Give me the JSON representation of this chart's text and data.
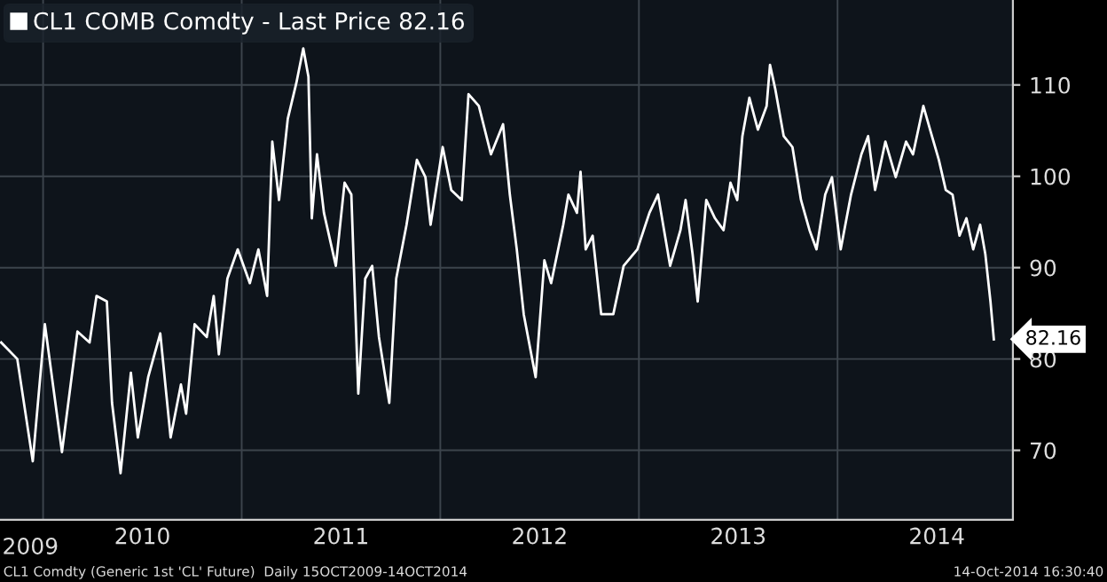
{
  "chart_data": {
    "type": "line",
    "legend": "top left",
    "grid": true,
    "annotations": [
      "CL1 Comdty (Generic 1st 'CL' Future)  Daily 15OCT2009-14OCT2014",
      "14-Oct-2014 16:30:40",
      "2009"
    ],
    "xlim": [
      2009.783,
      2014.883
    ],
    "ylim": [
      62.4,
      119.3
    ],
    "xticks": [
      {
        "value": 2010,
        "label": null
      },
      {
        "value": 2010.5,
        "label": "2010"
      },
      {
        "value": 2011,
        "label": null
      },
      {
        "value": 2011.5,
        "label": "2011"
      },
      {
        "value": 2012,
        "label": null
      },
      {
        "value": 2012.5,
        "label": "2012"
      },
      {
        "value": 2013,
        "label": null
      },
      {
        "value": 2013.5,
        "label": "2013"
      },
      {
        "value": 2014,
        "label": null
      },
      {
        "value": 2014.5,
        "label": "2014"
      }
    ],
    "yticks": [
      70,
      80,
      90,
      100,
      110
    ],
    "series": [
      {
        "name": "CL1 COMB Comdty - Last Price 82.16",
        "color": "#ffffff",
        "x": [
          2009.789,
          2009.87,
          2009.948,
          2010.009,
          2010.095,
          2010.173,
          2010.234,
          2010.269,
          2010.321,
          2010.347,
          2010.39,
          2010.442,
          2010.477,
          2010.529,
          2010.59,
          2010.642,
          2010.694,
          2010.72,
          2010.763,
          2010.824,
          2010.859,
          2010.885,
          2010.928,
          2010.98,
          2011.041,
          2011.084,
          2011.128,
          2011.154,
          2011.188,
          2011.232,
          2011.275,
          2011.31,
          2011.336,
          2011.353,
          2011.379,
          2011.414,
          2011.474,
          2011.518,
          2011.552,
          2011.587,
          2011.622,
          2011.657,
          2011.691,
          2011.743,
          2011.778,
          2011.83,
          2011.882,
          2011.925,
          2011.951,
          2012.012,
          2012.055,
          2012.108,
          2012.142,
          2012.194,
          2012.255,
          2012.316,
          2012.35,
          2012.385,
          2012.42,
          2012.48,
          2012.524,
          2012.558,
          2012.619,
          2012.645,
          2012.688,
          2012.706,
          2012.732,
          2012.767,
          2012.81,
          2012.871,
          2012.923,
          2012.992,
          2013.053,
          2013.096,
          2013.157,
          2013.209,
          2013.235,
          2013.27,
          2013.296,
          2013.339,
          2013.383,
          2013.426,
          2013.461,
          2013.495,
          2013.521,
          2013.556,
          2013.599,
          2013.643,
          2013.66,
          2013.686,
          2013.729,
          2013.773,
          2013.816,
          2013.859,
          2013.894,
          2013.938,
          2013.972,
          2014.016,
          2014.068,
          2014.12,
          2014.154,
          2014.189,
          2014.241,
          2014.293,
          2014.345,
          2014.38,
          2014.432,
          2014.466,
          2014.51,
          2014.545,
          2014.579,
          2014.614,
          2014.649,
          2014.683,
          2014.718,
          2014.744,
          2014.77,
          2014.787
        ],
        "values": [
          81.8,
          80,
          68.8,
          83.8,
          69.8,
          83,
          81.8,
          86.9,
          86.3,
          75.2,
          67.5,
          78.5,
          71.4,
          78,
          82.8,
          71.4,
          77.2,
          74,
          83.8,
          82.4,
          86.9,
          80.5,
          88.8,
          92,
          88.3,
          92,
          86.9,
          103.8,
          97.4,
          106.3,
          110.2,
          114,
          110.9,
          95.4,
          102.4,
          96,
          90.2,
          99.3,
          98,
          76.2,
          88.8,
          90.2,
          82.4,
          75.2,
          88.8,
          94.7,
          101.8,
          99.9,
          94.7,
          103.2,
          98.5,
          97.4,
          109,
          107.7,
          102.4,
          105.7,
          98,
          92,
          84.9,
          78,
          90.8,
          88.3,
          94.7,
          98,
          96,
          100.5,
          92,
          93.5,
          84.9,
          84.9,
          90.2,
          92,
          96,
          98,
          90.2,
          94.1,
          97.4,
          91.5,
          86.3,
          97.4,
          95.4,
          94.1,
          99.3,
          97.4,
          104.4,
          108.6,
          105.1,
          107.7,
          112.2,
          109.6,
          104.4,
          103.2,
          97.4,
          94.1,
          92,
          98,
          99.9,
          92,
          98,
          102.4,
          104.4,
          98.5,
          103.8,
          99.9,
          103.8,
          102.4,
          107.7,
          105.1,
          101.8,
          98.5,
          98,
          93.5,
          95.4,
          92,
          94.7,
          91.5,
          86.3,
          82.16
        ],
        "value_labels": [
          null,
          null,
          null,
          null,
          null,
          null,
          null,
          null,
          null,
          null,
          null,
          null,
          null,
          null,
          null,
          null,
          null,
          null,
          null,
          null,
          null,
          null,
          null,
          null,
          null,
          null,
          null,
          null,
          null,
          null,
          null,
          null,
          null,
          null,
          null,
          null,
          null,
          null,
          null,
          null,
          null,
          null,
          null,
          null,
          null,
          null,
          null,
          null,
          null,
          null,
          null,
          null,
          null,
          null,
          null,
          null,
          null,
          null,
          null,
          null,
          null,
          null,
          null,
          null,
          null,
          null,
          null,
          null,
          null,
          null,
          null,
          null,
          null,
          null,
          null,
          null,
          null,
          null,
          null,
          null,
          null,
          null,
          null,
          null,
          null,
          null,
          null,
          null,
          null,
          null,
          null,
          null,
          null,
          null,
          null,
          null,
          null,
          null,
          null,
          null,
          null,
          null,
          null,
          null,
          null,
          null,
          null,
          null,
          null,
          null,
          null,
          null,
          null,
          null,
          null,
          null,
          null,
          "82.16"
        ]
      }
    ]
  }
}
